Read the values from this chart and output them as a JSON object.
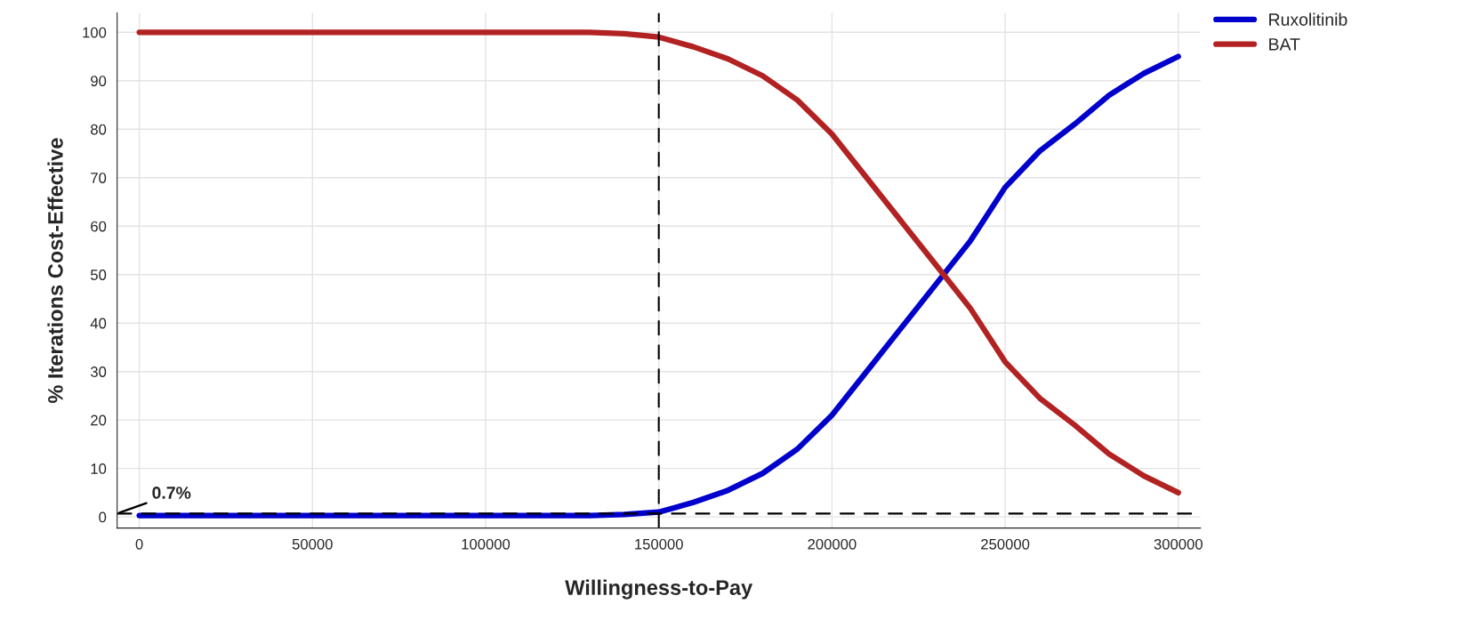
{
  "chart_data": {
    "type": "line",
    "xlabel": "Willingness-to-Pay",
    "ylabel": "% Iterations Cost-Effective",
    "x": [
      0,
      50000,
      100000,
      130000,
      140000,
      150000,
      160000,
      170000,
      180000,
      190000,
      200000,
      210000,
      220000,
      230000,
      240000,
      250000,
      260000,
      270000,
      280000,
      290000,
      300000
    ],
    "series": [
      {
        "name": "Ruxolitinib",
        "color": "#0000cc",
        "values": [
          0.3,
          0.3,
          0.3,
          0.3,
          0.5,
          1,
          3,
          5.5,
          9,
          14,
          21,
          30,
          39,
          48,
          57,
          68,
          75.5,
          81,
          87,
          91.5,
          95
        ]
      },
      {
        "name": "BAT",
        "color": "#b22222",
        "values": [
          100,
          100,
          100,
          100,
          99.7,
          99,
          97,
          94.5,
          91,
          86,
          79,
          70,
          61,
          52,
          43,
          32,
          24.5,
          19,
          13,
          8.5,
          5
        ]
      }
    ],
    "xlim": [
      -6400,
      306400
    ],
    "ylim": [
      -2.3,
      104
    ],
    "xticks": [
      0,
      50000,
      100000,
      150000,
      200000,
      250000,
      300000
    ],
    "yticks": [
      0,
      10,
      20,
      30,
      40,
      50,
      60,
      70,
      80,
      90,
      100
    ],
    "ref_lines": [
      {
        "axis": "x",
        "value": 150000,
        "line_style": "dashed",
        "color": "#000000"
      },
      {
        "axis": "y",
        "value": 0.7,
        "label": "0.7%",
        "line_style": "dashed",
        "color": "#000000"
      }
    ],
    "grid": true,
    "legend": "top right",
    "marker": "none",
    "line_style": "solid"
  }
}
